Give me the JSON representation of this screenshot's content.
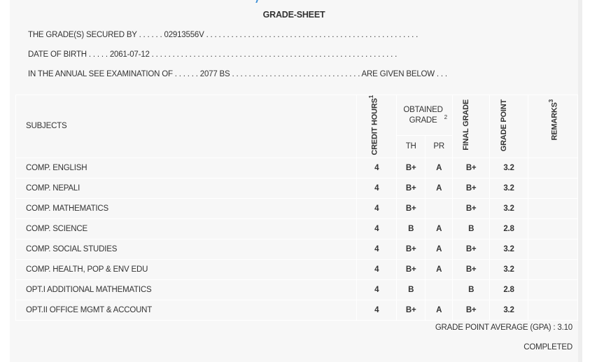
{
  "title": "GRADE-SHEET",
  "info": {
    "secured_by_label": "THE GRADE(S) SECURED BY . . . . . .",
    "secured_by_value": "02913556V",
    "secured_by_trail": ". . . . . . . . . . . . . . . . . . . . . . . . . . . . . . . . . . . . . . . . . . . . . . . . . . .",
    "dob_label": "DATE OF BIRTH . . . . .",
    "dob_value": "2061-07-12",
    "dob_trail": ". . . . . . . . . . . . . . . . . . . . . . . . . . . . . . . . . . . . . . . . . . . . . . . . . . . . . . . . . . .",
    "exam_label": "IN THE ANNUAL SEE EXAMINATION OF . . . . . .",
    "exam_value": "2077 BS",
    "exam_trail": ". . . . . . . . . . . . . . . . . . . . . . . . . . . . . . . ARE GIVEN BELOW . . ."
  },
  "headers": {
    "subjects": "SUBJECTS",
    "credit_hours": "CREDIT HOURS",
    "credit_sup": "1",
    "obtained_grade": "OBTAINED GRADE",
    "obtained_sup": "2",
    "th": "TH",
    "pr": "PR",
    "final_grade": "FINAL GRADE",
    "grade_point": "GRADE POINT",
    "remarks": "REMARKS",
    "remarks_sup": "3"
  },
  "rows": [
    {
      "subject": "COMP. ENGLISH",
      "credit": "4",
      "th": "B+",
      "pr": "A",
      "final": "B+",
      "gp": "3.2",
      "remarks": ""
    },
    {
      "subject": "COMP. NEPALI",
      "credit": "4",
      "th": "B+",
      "pr": "A",
      "final": "B+",
      "gp": "3.2",
      "remarks": ""
    },
    {
      "subject": "COMP. MATHEMATICS",
      "credit": "4",
      "th": "B+",
      "pr": "",
      "final": "B+",
      "gp": "3.2",
      "remarks": ""
    },
    {
      "subject": "COMP. SCIENCE",
      "credit": "4",
      "th": "B",
      "pr": "A",
      "final": "B",
      "gp": "2.8",
      "remarks": ""
    },
    {
      "subject": "COMP. SOCIAL STUDIES",
      "credit": "4",
      "th": "B+",
      "pr": "A",
      "final": "B+",
      "gp": "3.2",
      "remarks": ""
    },
    {
      "subject": "COMP. HEALTH, POP & ENV EDU",
      "credit": "4",
      "th": "B+",
      "pr": "A",
      "final": "B+",
      "gp": "3.2",
      "remarks": ""
    },
    {
      "subject": "OPT.I ADDITIONAL MATHEMATICS",
      "credit": "4",
      "th": "B",
      "pr": "",
      "final": "B",
      "gp": "2.8",
      "remarks": ""
    },
    {
      "subject": "OPT.II OFFICE MGMT & ACCOUNT",
      "credit": "4",
      "th": "B+",
      "pr": "A",
      "final": "B+",
      "gp": "3.2",
      "remarks": ""
    }
  ],
  "gpa": "GRADE POINT AVERAGE (GPA) : 3.10",
  "status": "COMPLETED"
}
